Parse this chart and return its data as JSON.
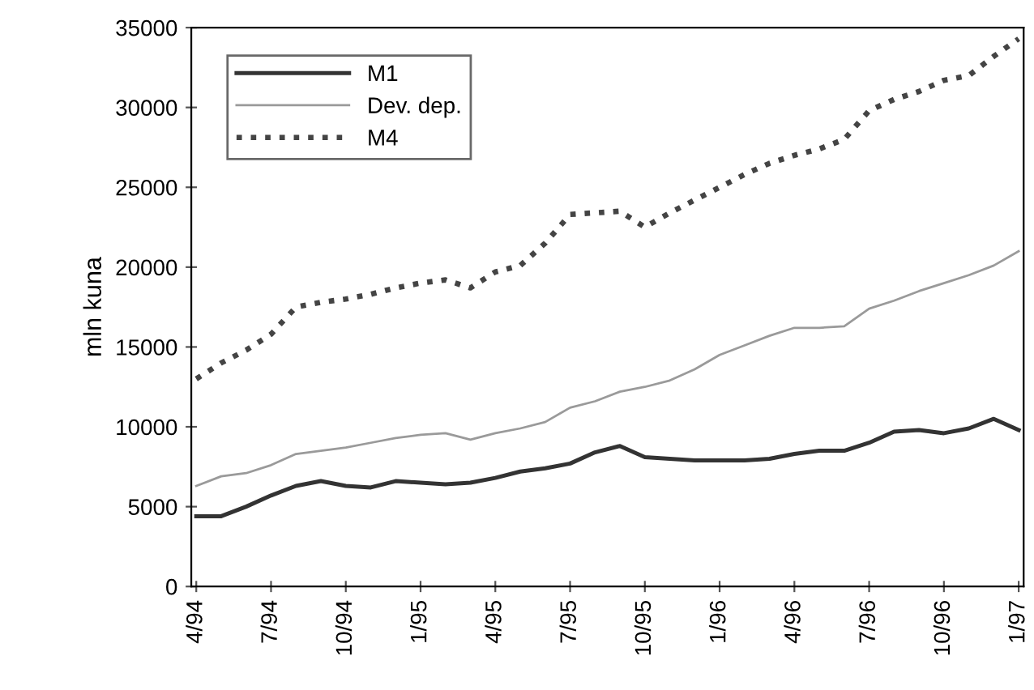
{
  "chart_data": {
    "type": "line",
    "ylabel": "mln kuna",
    "categories": [
      "4/94",
      null,
      null,
      "7/94",
      null,
      null,
      "10/94",
      null,
      null,
      "1/95",
      null,
      null,
      "4/95",
      null,
      null,
      "7/95",
      null,
      null,
      "10/95",
      null,
      null,
      "1/96",
      null,
      null,
      "4/96",
      null,
      null,
      "7/96",
      null,
      null,
      "10/96",
      null,
      null,
      "1/97"
    ],
    "series": [
      {
        "name": "M1",
        "color": "#333333",
        "line_style": "solid",
        "values": [
          4400,
          4400,
          5000,
          5700,
          6300,
          6600,
          6300,
          6200,
          6600,
          6500,
          6400,
          6500,
          6800,
          7200,
          7400,
          7700,
          8400,
          8800,
          8100,
          8000,
          7900,
          7900,
          7900,
          8000,
          8300,
          8500,
          8500,
          9000,
          9700,
          9800,
          9600,
          9900,
          10500,
          9800
        ]
      },
      {
        "name": "Dev. dep.",
        "color": "#9a9a9a",
        "line_style": "solid",
        "values": [
          6300,
          6900,
          7100,
          7600,
          8300,
          8500,
          8700,
          9000,
          9300,
          9500,
          9600,
          9200,
          9600,
          9900,
          10300,
          11200,
          11600,
          12200,
          12500,
          12900,
          13600,
          14500,
          15100,
          15700,
          16200,
          16200,
          16300,
          17400,
          17900,
          18500,
          19000,
          19500,
          20100,
          21000
        ]
      },
      {
        "name": "M4",
        "color": "#444444",
        "line_style": "dotted",
        "values": [
          13000,
          14000,
          14800,
          15800,
          17500,
          17800,
          18000,
          18300,
          18700,
          19000,
          19200,
          18700,
          19700,
          20100,
          21500,
          23300,
          23400,
          23500,
          22500,
          23400,
          24200,
          25000,
          25800,
          26500,
          27000,
          27400,
          28000,
          29800,
          30500,
          31000,
          31700,
          32000,
          33200,
          34300
        ]
      }
    ],
    "ylim": [
      0,
      35000
    ],
    "yticks": [
      0,
      5000,
      10000,
      15000,
      20000,
      25000,
      30000,
      35000
    ],
    "grid": false,
    "legend": "top left"
  }
}
